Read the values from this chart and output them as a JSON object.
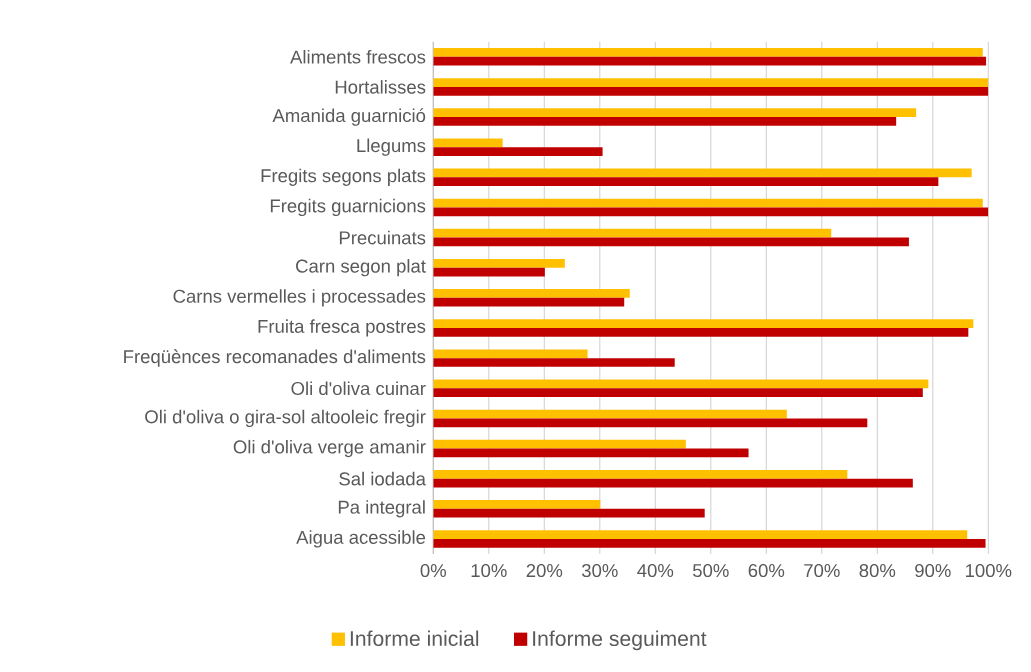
{
  "chart_data": {
    "type": "bar",
    "orientation": "horizontal",
    "categories": [
      "Aliments frescos",
      "Hortalisses",
      "Amanida guarnició",
      "Llegums",
      "Fregits segons plats",
      "Fregits guarnicions",
      "Precuinats",
      "Carn segon plat",
      "Carns vermelles i processades",
      "Fruita fresca postres",
      "Freqüènces recomanades d'aliments",
      "Oli d'oliva cuinar",
      "Oli d'oliva o gira-sol altooleic fregir",
      "Oli d'oliva verge amanir",
      "Sal iodada",
      "Pa integral",
      "Aigua acessible"
    ],
    "series": [
      {
        "name": "Informe inicial",
        "color": "#ffc000",
        "values": [
          99.0,
          100,
          87.0,
          12.5,
          97.0,
          99.0,
          71.7,
          23.7,
          35.4,
          97.3,
          27.8,
          89.2,
          63.7,
          45.5,
          74.6,
          30.1,
          96.2
        ]
      },
      {
        "name": "Informe seguiment",
        "color": "#c00000",
        "values": [
          99.6,
          100,
          83.4,
          30.5,
          91.0,
          100,
          85.7,
          20.1,
          34.4,
          96.4,
          43.5,
          88.2,
          78.2,
          56.8,
          86.4,
          48.9,
          99.5
        ]
      }
    ],
    "xlim": [
      0,
      100
    ],
    "xticks": [
      {
        "value": 0,
        "label": "0%"
      },
      {
        "value": 10,
        "label": "10%"
      },
      {
        "value": 20,
        "label": "20%"
      },
      {
        "value": 30,
        "label": "30%"
      },
      {
        "value": 40,
        "label": "40%"
      },
      {
        "value": 50,
        "label": "50%"
      },
      {
        "value": 60,
        "label": "60%"
      },
      {
        "value": 70,
        "label": "70%"
      },
      {
        "value": 80,
        "label": "80%"
      },
      {
        "value": 90,
        "label": "90%"
      },
      {
        "value": 100,
        "label": "100%"
      }
    ],
    "grid": "x",
    "legend": "bottom"
  }
}
